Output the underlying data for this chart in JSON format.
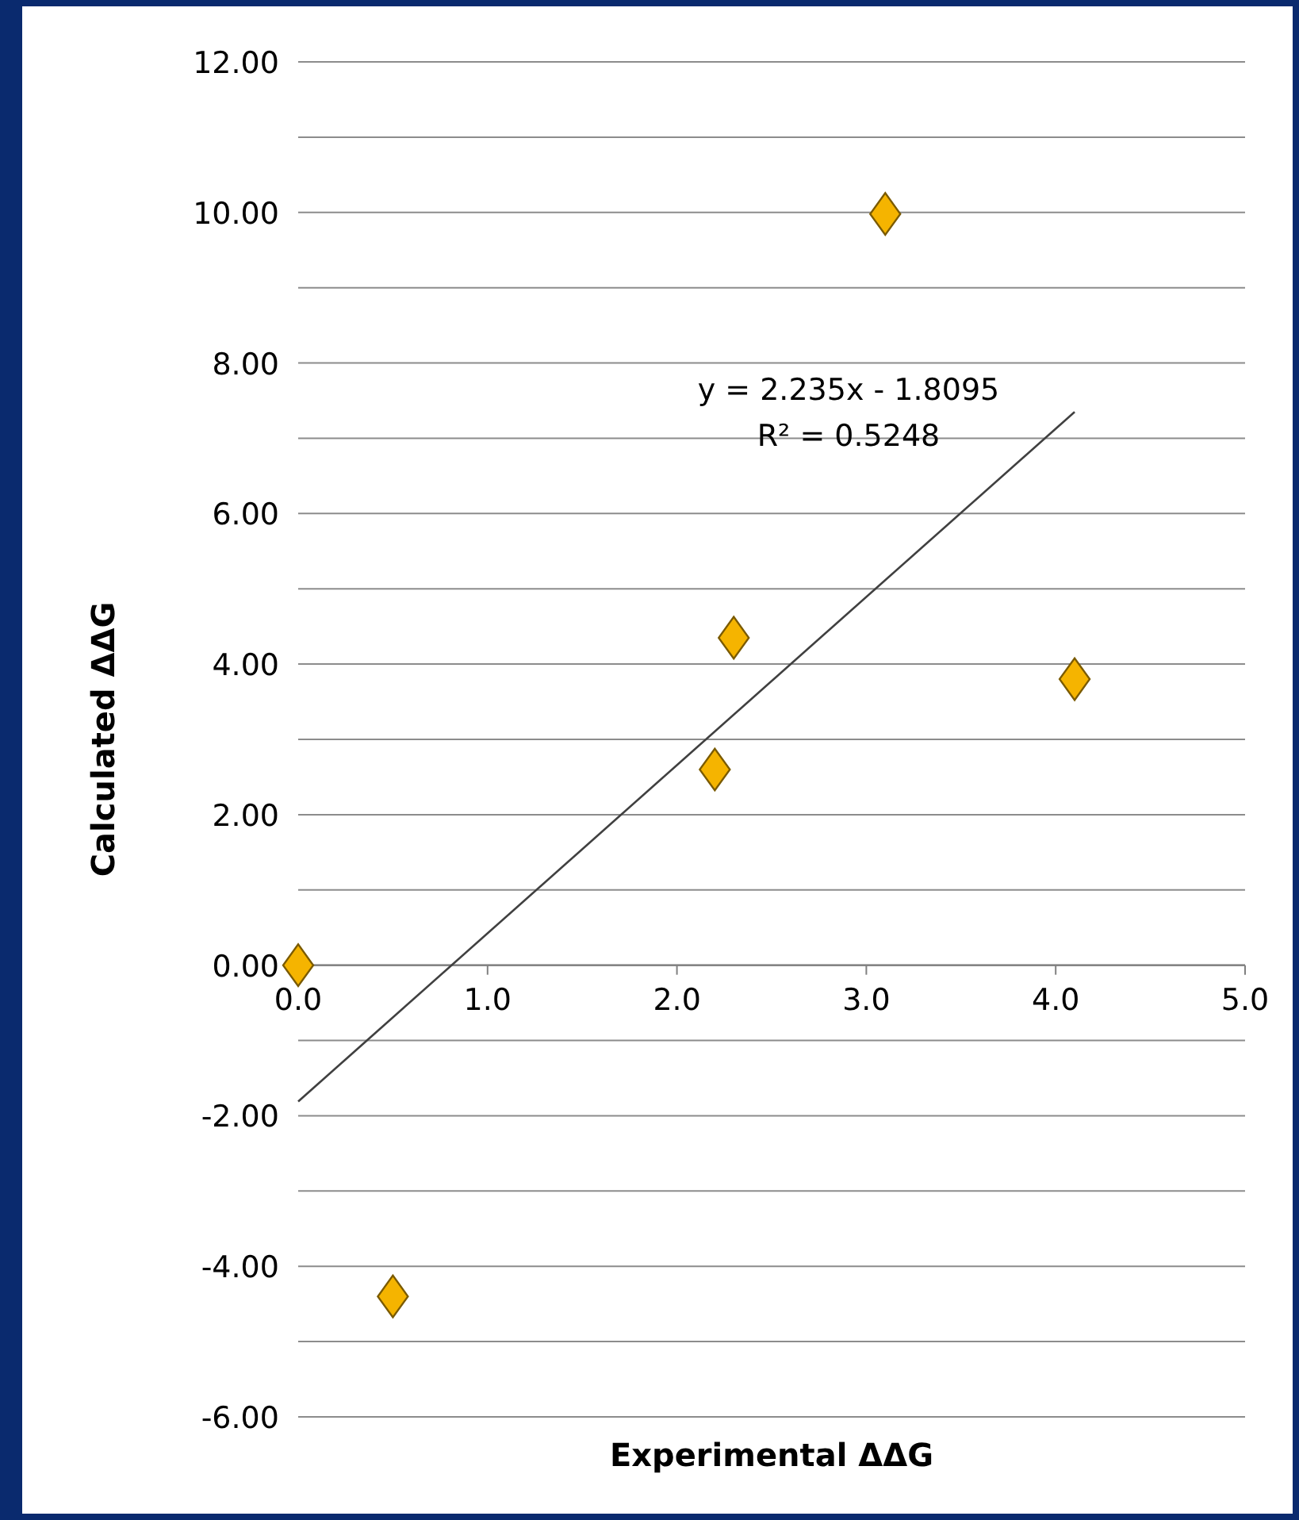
{
  "chart_data": {
    "type": "scatter",
    "xlabel": "Experimental ΔΔG",
    "ylabel": "Calculated ΔΔG",
    "xlim": [
      0,
      5
    ],
    "ylim": [
      -6,
      12
    ],
    "xticks": [
      {
        "value": 0,
        "label": "0.0"
      },
      {
        "value": 1,
        "label": "1.0"
      },
      {
        "value": 2,
        "label": "2.0"
      },
      {
        "value": 3,
        "label": "3.0"
      },
      {
        "value": 4,
        "label": "4.0"
      },
      {
        "value": 5,
        "label": "5.0"
      }
    ],
    "yticks": [
      {
        "value": -6,
        "label": "-6.00"
      },
      {
        "value": -5,
        "label": null
      },
      {
        "value": -4,
        "label": "-4.00"
      },
      {
        "value": -3,
        "label": null
      },
      {
        "value": -2,
        "label": "-2.00"
      },
      {
        "value": -1,
        "label": null
      },
      {
        "value": 0,
        "label": "0.00"
      },
      {
        "value": 1,
        "label": null
      },
      {
        "value": 2,
        "label": "2.00"
      },
      {
        "value": 3,
        "label": null
      },
      {
        "value": 4,
        "label": "4.00"
      },
      {
        "value": 5,
        "label": null
      },
      {
        "value": 6,
        "label": "6.00"
      },
      {
        "value": 7,
        "label": null
      },
      {
        "value": 8,
        "label": "8.00"
      },
      {
        "value": 9,
        "label": null
      },
      {
        "value": 10,
        "label": "10.00"
      },
      {
        "value": 11,
        "label": null
      },
      {
        "value": 12,
        "label": "12.00"
      }
    ],
    "grid": "y",
    "series": [
      {
        "marker": "diamond",
        "color": "#f5b400",
        "x": [
          0,
          0.5,
          2.2,
          2.3,
          3.1,
          4.1
        ],
        "values": [
          0,
          -4.4,
          2.6,
          4.35,
          9.98,
          3.8
        ]
      },
      {
        "type": "line",
        "marker": "none",
        "color": "#404040",
        "x": [
          0,
          4.1
        ],
        "values": [
          -1.81,
          7.35
        ]
      }
    ],
    "annotations": [
      "y = 2.235x - 1.8095",
      "R² = 0.5248"
    ]
  }
}
